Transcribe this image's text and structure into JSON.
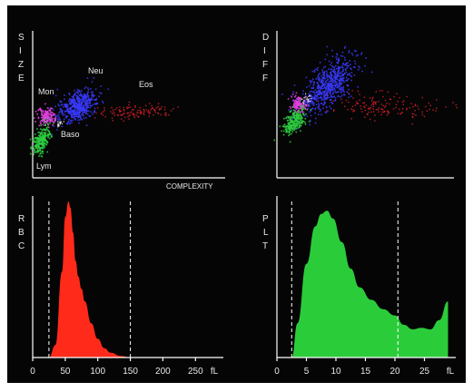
{
  "chart_data": [
    {
      "type": "scatter",
      "id": "size_complexity",
      "ylabel": "SIZE",
      "xlabel": "COMPLEXITY",
      "clusters": [
        {
          "name": "Lym",
          "color": "#2ecc40"
        },
        {
          "name": "Mon",
          "color": "#e040e0"
        },
        {
          "name": "Neu",
          "color": "#3a3aff"
        },
        {
          "name": "Baso",
          "color": "#ffffff"
        },
        {
          "name": "Eos",
          "color": "#e0202a"
        }
      ]
    },
    {
      "type": "scatter",
      "id": "diff",
      "ylabel": "DIFF",
      "clusters": [
        {
          "name": "",
          "color": "#2ecc40"
        },
        {
          "name": "",
          "color": "#e040e0"
        },
        {
          "name": "",
          "color": "#3a3aff"
        },
        {
          "name": "",
          "color": "#ffffff"
        },
        {
          "name": "",
          "color": "#e0202a"
        }
      ]
    },
    {
      "type": "area",
      "id": "rbc",
      "ylabel": "RBC",
      "xunit": "fL",
      "xticks": [
        "0",
        "50",
        "100",
        "150",
        "200",
        "250"
      ],
      "xlim": [
        0,
        290
      ],
      "color": "#ff2a1a",
      "dashed_thresholds": [
        25,
        150
      ],
      "x": [
        25,
        35,
        45,
        50,
        55,
        58,
        62,
        66,
        70,
        75,
        80,
        90,
        100,
        110,
        120,
        135,
        150
      ],
      "y": [
        0,
        8,
        55,
        90,
        100,
        96,
        80,
        62,
        52,
        44,
        36,
        22,
        12,
        6,
        3,
        1,
        0
      ]
    },
    {
      "type": "area",
      "id": "plt",
      "ylabel": "PLT",
      "xunit": "fL",
      "xticks": [
        "0",
        "5",
        "10",
        "15",
        "20",
        "25"
      ],
      "xlim": [
        0,
        30
      ],
      "color": "#2bcc3a",
      "dashed_thresholds": [
        2.5,
        20.5
      ],
      "x": [
        2.5,
        3.5,
        5,
        6.5,
        7.5,
        8.5,
        9.5,
        11,
        12.5,
        14,
        16,
        18,
        20,
        21.5,
        23,
        24.5,
        26,
        27.5,
        29
      ],
      "y": [
        0,
        22,
        60,
        84,
        92,
        94,
        89,
        74,
        57,
        45,
        37,
        31,
        27,
        21,
        18,
        19,
        18,
        24,
        36
      ]
    }
  ],
  "labels": {
    "size_axis": [
      "S",
      "I",
      "Z",
      "E"
    ],
    "diff_axis": [
      "D",
      "I",
      "F",
      "F"
    ],
    "rbc_axis": [
      "R",
      "B",
      "C"
    ],
    "plt_axis": [
      "P",
      "L",
      "T"
    ],
    "complexity": "COMPLEXITY",
    "mon": "Mon",
    "neu": "Neu",
    "eos": "Eos",
    "baso": "Baso",
    "lym": "Lym",
    "unit": "fL"
  }
}
